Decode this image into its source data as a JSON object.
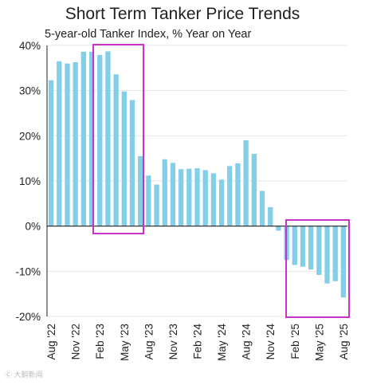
{
  "chart_data": {
    "type": "bar",
    "title": "Short Term Tanker Price Trends",
    "subtitle": "5-year-old Tanker Index, % Year on Year",
    "ylim": [
      -20,
      40
    ],
    "y_ticks": [
      40,
      30,
      20,
      10,
      0,
      -10,
      -20
    ],
    "y_tick_labels": [
      "40%",
      "30%",
      "20%",
      "10%",
      "0%",
      "-10%",
      "-20%"
    ],
    "x_tick_labels": [
      "Aug '22",
      "Nov '22",
      "Feb '23",
      "May '23",
      "Aug '23",
      "Nov '23",
      "Feb '24",
      "May '24",
      "Aug '24",
      "Nov '24",
      "Feb '25",
      "May '25",
      "Aug '25"
    ],
    "categories": [
      "Aug '22",
      "Sep '22",
      "Oct '22",
      "Nov '22",
      "Dec '22",
      "Jan '23",
      "Feb '23",
      "Mar '23",
      "Apr '23",
      "May '23",
      "Jun '23",
      "Jul '23",
      "Aug '23",
      "Sep '23",
      "Oct '23",
      "Nov '23",
      "Dec '23",
      "Jan '24",
      "Feb '24",
      "Mar '24",
      "Apr '24",
      "May '24",
      "Jun '24",
      "Jul '24",
      "Aug '24",
      "Sep '24",
      "Oct '24",
      "Nov '24",
      "Dec '24",
      "Jan '25",
      "Feb '25",
      "Mar '25",
      "Apr '25",
      "May '25",
      "Jun '25",
      "Jul '25",
      "Aug '25"
    ],
    "values": [
      32.3,
      36.5,
      36.0,
      36.3,
      38.6,
      38.6,
      37.9,
      38.7,
      33.6,
      29.8,
      27.9,
      15.5,
      11.2,
      9.2,
      14.8,
      14.0,
      12.6,
      12.7,
      12.8,
      12.4,
      11.7,
      10.3,
      13.3,
      13.9,
      19.0,
      16.0,
      7.8,
      4.2,
      -1.0,
      -7.5,
      -8.6,
      -9.0,
      -9.6,
      -10.8,
      -12.7,
      -12.2,
      -15.8
    ],
    "highlights": [
      {
        "from": "Feb '23",
        "to": "Jul '23"
      },
      {
        "from": "Feb '25",
        "to": "Aug '25"
      }
    ],
    "colors": {
      "bar": "#84cfe8",
      "highlight": "#c932c9",
      "axis": "#222222",
      "grid": "#e6e6e6"
    },
    "grid": true,
    "legend": "none"
  },
  "watermark": "Ⓒ 大鹅新闻"
}
